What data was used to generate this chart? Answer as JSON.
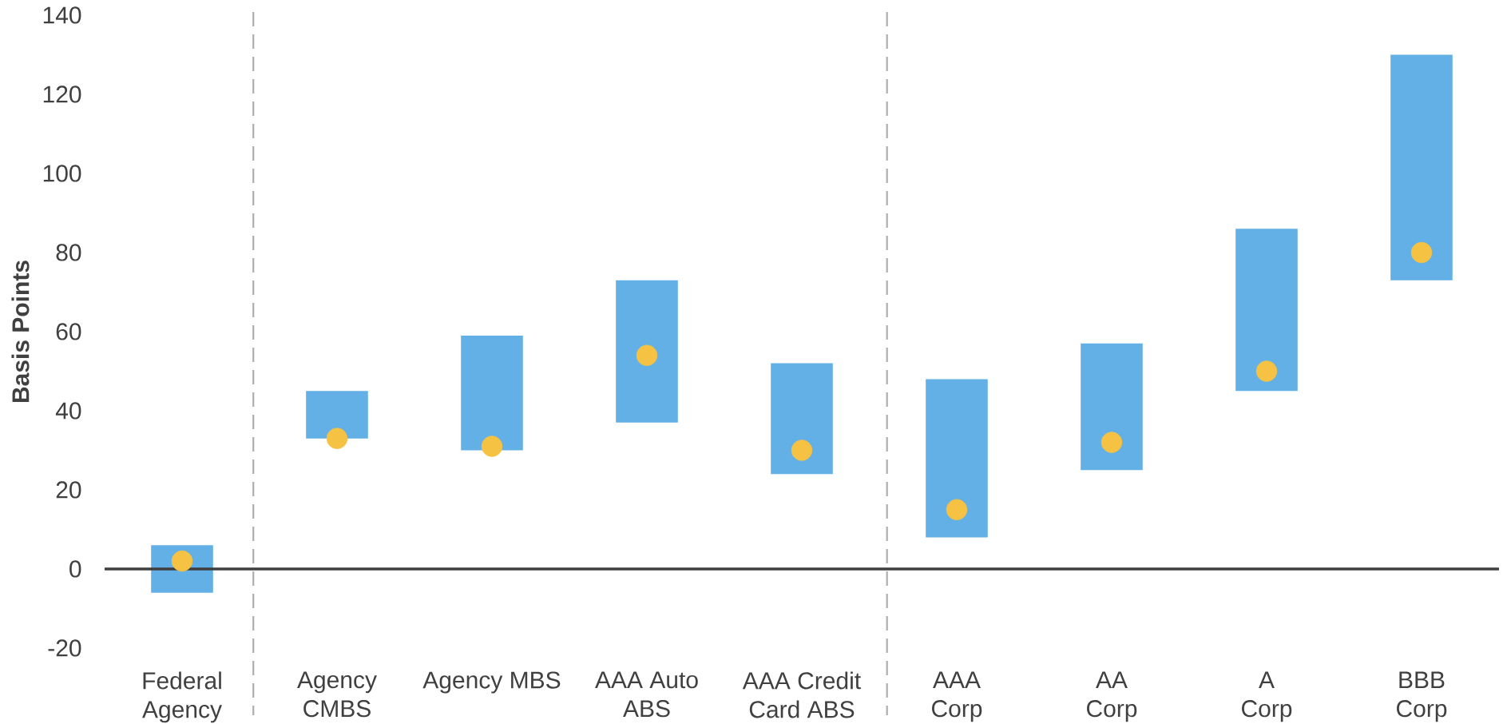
{
  "chart_data": {
    "type": "bar",
    "ylabel": "Basis Points",
    "categories": [
      "Federal\nAgency",
      "Agency\nCMBS",
      "Agency MBS",
      "AAA Auto\nABS",
      "AAA Credit\nCard ABS",
      "AAA\nCorp",
      "AA\nCorp",
      "A\nCorp",
      "BBB\nCorp"
    ],
    "series": [
      {
        "color": "#63b0e6",
        "base": [
          -6,
          33,
          30,
          37,
          24,
          8,
          25,
          45,
          73
        ],
        "values": [
          12,
          12,
          29,
          36,
          28,
          40,
          32,
          41,
          57
        ]
      },
      {
        "type": "scatter",
        "color": "#f5c243",
        "marker": "circle",
        "values": [
          2,
          33,
          31,
          54,
          30,
          15,
          32,
          50,
          80
        ]
      }
    ],
    "ylim": [
      -20,
      140
    ],
    "yticks": [
      -20,
      0,
      20,
      40,
      60,
      80,
      100,
      120,
      140
    ],
    "ref_lines": [
      {
        "axis": "y",
        "value": 0,
        "color": "#3f3f3f",
        "line_style": "solid"
      }
    ]
  }
}
